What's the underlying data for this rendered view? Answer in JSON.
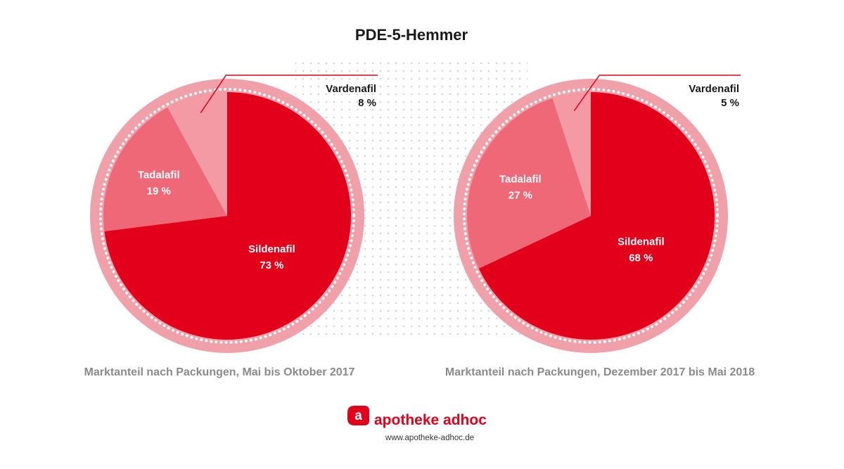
{
  "chart_data": [
    {
      "type": "pie",
      "title": "PDE-5-Hemmer",
      "caption": "Marktanteil nach Packungen, Mai bis Oktober 2017",
      "slices": [
        {
          "label": "Sildenafil",
          "value": 73,
          "value_text": "73 %",
          "color": "#e2001a"
        },
        {
          "label": "Tadalafil",
          "value": 19,
          "value_text": "19 %",
          "color": "#ef6878"
        },
        {
          "label": "Vardenafil",
          "value": 8,
          "value_text": "8 %",
          "color": "#f39aa4"
        }
      ]
    },
    {
      "type": "pie",
      "title": "PDE-5-Hemmer",
      "caption": "Marktanteil nach Packungen, Dezember 2017 bis Mai 2018",
      "slices": [
        {
          "label": "Sildenafil",
          "value": 68,
          "value_text": "68 %",
          "color": "#e2001a"
        },
        {
          "label": "Tadalafil",
          "value": 27,
          "value_text": "27 %",
          "color": "#ef6878"
        },
        {
          "label": "Vardenafil",
          "value": 5,
          "value_text": "5 %",
          "color": "#f39aa4"
        }
      ]
    }
  ],
  "header": {
    "title": "PDE-5-Hemmer"
  },
  "brand": {
    "logo_icon": "apotheke-adhoc-logo-icon",
    "name": "apotheke adhoc",
    "url": "www.apotheke-adhoc.de",
    "accent": "#e2001a",
    "ring": "#f0a0a8"
  }
}
